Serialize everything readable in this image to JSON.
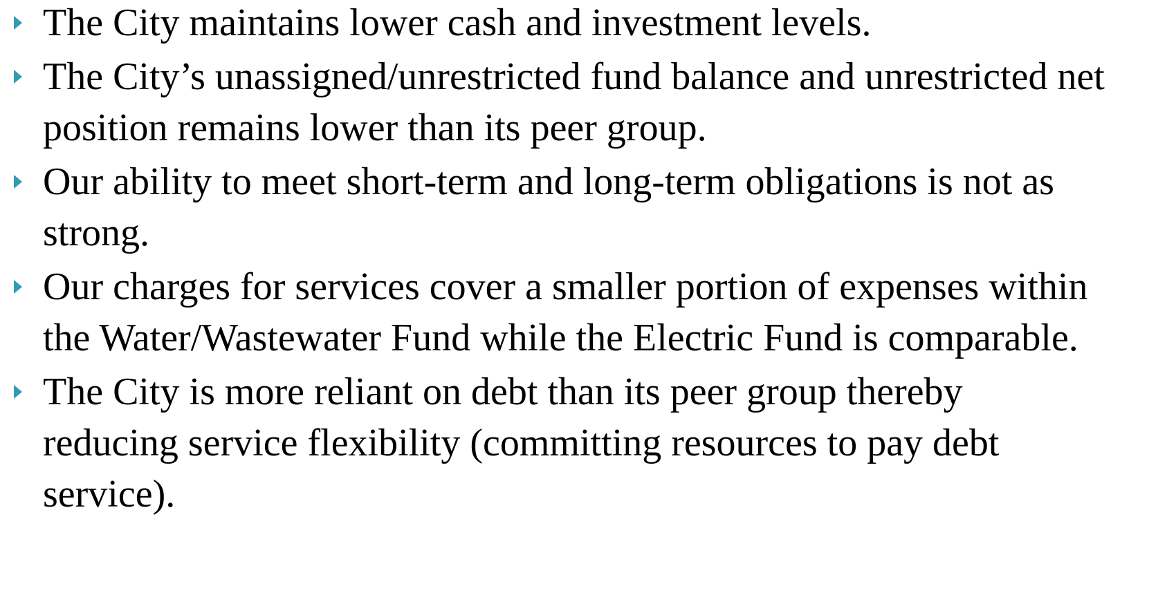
{
  "bullets": [
    "The City maintains lower cash and investment levels.",
    "The City’s unassigned/unrestricted fund balance and unrestricted net position remains lower than its peer group.",
    "Our ability to meet short-term and long-term obligations is not as strong.",
    "Our charges for services cover a smaller portion of expenses within the Water/Wastewater Fund while the Electric Fund is comparable.",
    "The City is more reliant on debt than its peer group thereby reducing service flexibility (committing resources to pay debt service)."
  ]
}
